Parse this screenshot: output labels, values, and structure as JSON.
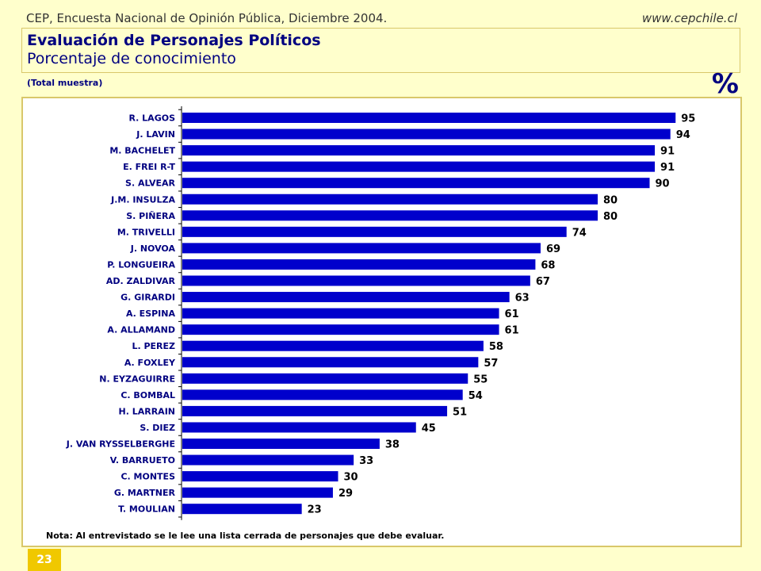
{
  "header": {
    "left": "CEP, Encuesta Nacional de Opinión Pública, Diciembre 2004.",
    "right": "www.cepchile.cl"
  },
  "title": "Evaluación de Personajes Políticos",
  "subtitle": "Porcentaje de conocimiento",
  "sample_label": "(Total muestra)",
  "unit_label": "%",
  "note": "Nota: Al entrevistado se le lee una lista cerrada de personajes que debe evaluar.",
  "page_number": "23",
  "colors": {
    "bar": "#0000cc",
    "label": "#000080",
    "background": "#ffffcc",
    "border": "#d9c76a"
  },
  "chart_data": {
    "type": "bar",
    "orientation": "horizontal",
    "categories": [
      "R. LAGOS",
      "J. LAVIN",
      "M. BACHELET",
      "E. FREI R-T",
      "S. ALVEAR",
      "J.M. INSULZA",
      "S. PIÑERA",
      "M. TRIVELLI",
      "J. NOVOA",
      "P. LONGUEIRA",
      "AD. ZALDIVAR",
      "G. GIRARDI",
      "A. ESPINA",
      "A. ALLAMAND",
      "L. PEREZ",
      "A. FOXLEY",
      "N. EYZAGUIRRE",
      "C. BOMBAL",
      "H. LARRAIN",
      "S. DIEZ",
      "J. VAN RYSSELBERGHE",
      "V. BARRUETO",
      "C. MONTES",
      "G. MARTNER",
      "T. MOULIAN"
    ],
    "values": [
      95,
      94,
      91,
      91,
      90,
      80,
      80,
      74,
      69,
      68,
      67,
      63,
      61,
      61,
      58,
      57,
      55,
      54,
      51,
      45,
      38,
      33,
      30,
      29,
      23
    ],
    "xlim": [
      0,
      100
    ],
    "grid": false
  }
}
